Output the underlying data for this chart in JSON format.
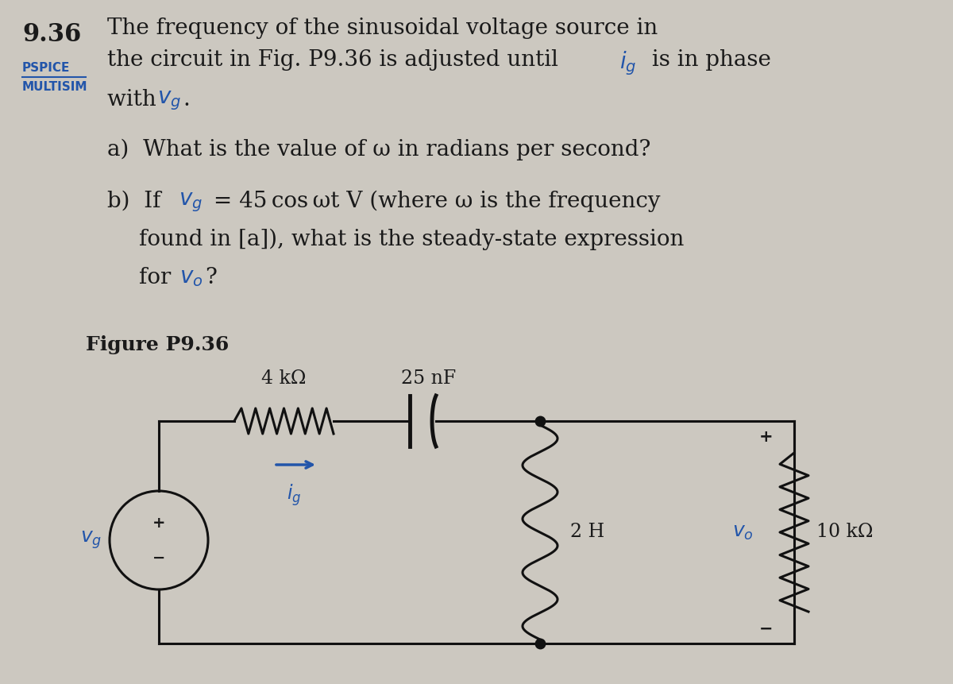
{
  "bg_color": "#ccc8c0",
  "text_color": "#1a1a1a",
  "blue_color": "#2255aa",
  "circuit_color": "#111111",
  "fig_width": 12.0,
  "fig_height": 8.61,
  "title_num": "9.36",
  "pspice_label": "PSPICE",
  "multisim_label": "MULTISIM",
  "figure_label": "Figure P9.36",
  "R_label": "4 kΩ",
  "C_label": "25 nF",
  "L_label": "2 H",
  "RL_label": "10 kΩ"
}
